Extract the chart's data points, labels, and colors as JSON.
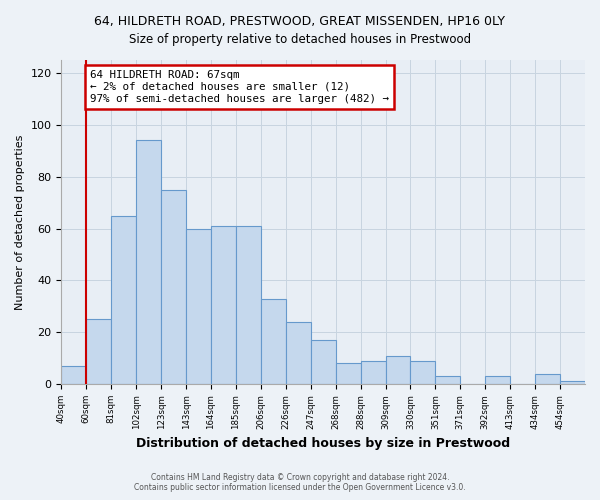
{
  "title": "64, HILDRETH ROAD, PRESTWOOD, GREAT MISSENDEN, HP16 0LY",
  "subtitle": "Size of property relative to detached houses in Prestwood",
  "xlabel": "Distribution of detached houses by size in Prestwood",
  "ylabel": "Number of detached properties",
  "bin_labels": [
    "40sqm",
    "60sqm",
    "81sqm",
    "102sqm",
    "123sqm",
    "143sqm",
    "164sqm",
    "185sqm",
    "206sqm",
    "226sqm",
    "247sqm",
    "268sqm",
    "288sqm",
    "309sqm",
    "330sqm",
    "351sqm",
    "371sqm",
    "392sqm",
    "413sqm",
    "434sqm",
    "454sqm"
  ],
  "bar_values": [
    7,
    25,
    65,
    94,
    75,
    60,
    61,
    61,
    33,
    24,
    17,
    8,
    9,
    11,
    9,
    3,
    0,
    3,
    0,
    4,
    1
  ],
  "bar_color": "#c5d8ed",
  "bar_edge_color": "#6699cc",
  "vline_x": 1,
  "vline_color": "#cc0000",
  "annotation_text": "64 HILDRETH ROAD: 67sqm\n← 2% of detached houses are smaller (12)\n97% of semi-detached houses are larger (482) →",
  "annotation_box_edge": "#cc0000",
  "ylim": [
    0,
    125
  ],
  "yticks": [
    0,
    20,
    40,
    60,
    80,
    100,
    120
  ],
  "footer_line1": "Contains HM Land Registry data © Crown copyright and database right 2024.",
  "footer_line2": "Contains public sector information licensed under the Open Government Licence v3.0.",
  "bg_color": "#edf2f7",
  "plot_bg_color": "#e8eef5"
}
